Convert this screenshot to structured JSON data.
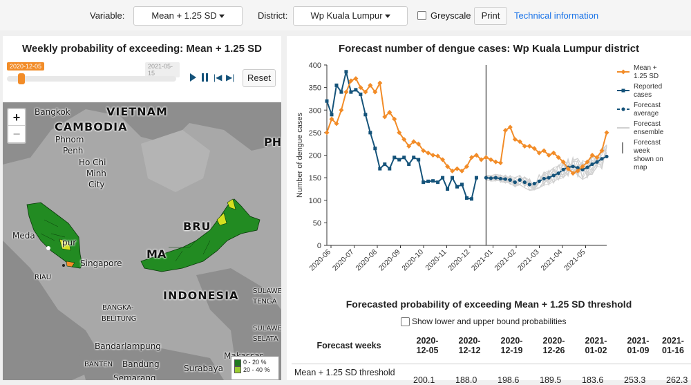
{
  "controls": {
    "variable_label": "Variable:",
    "variable_value": "Mean + 1.25 SD",
    "district_label": "District:",
    "district_value": "Wp Kuala Lumpur",
    "greyscale_label": "Greyscale",
    "print_label": "Print",
    "technical_link": "Technical information"
  },
  "map_panel": {
    "title": "Weekly probability of exceeding: Mean + 1.25 SD",
    "timeline_start": "2020-12-05",
    "timeline_end": "2021-05-15",
    "timeline_progress": 0,
    "reset_label": "Reset",
    "zoom_in": "+",
    "zoom_out": "−",
    "place_labels": [
      "Bangkok",
      "VIETNAM",
      "CAMBODIA",
      "Phnom",
      "Penh",
      "Ho Chi",
      "Minh",
      "City",
      "PH",
      "BRU",
      "Meda",
      "pur",
      "Singapore",
      "MA",
      "RIAU",
      "INDONESIA",
      "SULAWE",
      "TENGA",
      "BANGKA-",
      "BELITUNG",
      "SULAWE",
      "SELATA",
      "Bandarlampung",
      "BANTEN",
      "Bandung",
      "Surabaya",
      "Makassar",
      "Semarang"
    ],
    "legend": [
      {
        "label": "0 - 20 %",
        "color": "#1f7a1f"
      },
      {
        "label": "20 - 40 %",
        "color": "#9acd32"
      }
    ]
  },
  "chart_panel": {
    "title": "Forecast number of dengue cases: Wp Kuala Lumpur district"
  },
  "chart_data": {
    "type": "line",
    "title": "Forecast number of dengue cases: Wp Kuala Lumpur district",
    "ylabel": "Number of dengue cases",
    "ylim": [
      0,
      400
    ],
    "yticks": [
      "0",
      "50",
      "100",
      "150",
      "200",
      "250",
      "300",
      "350",
      "400"
    ],
    "xticks": [
      "2020-06",
      "2020-07",
      "2020-08",
      "2020-09",
      "2020-10",
      "2020-11",
      "2020-12",
      "2021-01",
      "2021-02",
      "2021-03",
      "2021-04",
      "2021-05"
    ],
    "forecast_week_marker": "2020-12-05",
    "series": [
      {
        "name": "Mean + 1.25 SD",
        "color": "#f28c28",
        "values": [
          250,
          280,
          270,
          300,
          340,
          365,
          370,
          350,
          340,
          355,
          340,
          360,
          285,
          295,
          280,
          250,
          235,
          220,
          230,
          225,
          210,
          205,
          200,
          198,
          190,
          175,
          165,
          170,
          165,
          175,
          195,
          200,
          190,
          195,
          190,
          185,
          183,
          255,
          262,
          235,
          230,
          220,
          220,
          215,
          205,
          210,
          200,
          205,
          195,
          185,
          170,
          160,
          165,
          175,
          185,
          200,
          195,
          210,
          250
        ]
      },
      {
        "name": "Reported cases",
        "color": "#15537a",
        "values": [
          320,
          290,
          355,
          340,
          385,
          340,
          345,
          335,
          290,
          250,
          215,
          170,
          180,
          170,
          195,
          190,
          195,
          180,
          195,
          190,
          140,
          142,
          143,
          140,
          150,
          125,
          150,
          130,
          135,
          105,
          103,
          150
        ]
      },
      {
        "name": "Forecast average",
        "color": "#15537a",
        "values": [
          150,
          149,
          150,
          148,
          147,
          145,
          140,
          145,
          140,
          135,
          137,
          142,
          148,
          150,
          155,
          160,
          168,
          173,
          175,
          172,
          168,
          173,
          180,
          185,
          192,
          197
        ]
      },
      {
        "name": "Forecast ensemble",
        "color": "#d0d0d0",
        "values": []
      }
    ],
    "legend_extra": "Forecast week shown on map"
  },
  "table": {
    "title": "Forecasted probability of exceeding Mean + 1.25 SD threshold",
    "checkbox_label": "Show lower and upper bound probabilities",
    "header_label": "Forecast weeks",
    "weeks": [
      "2020-12-05",
      "2020-12-12",
      "2020-12-19",
      "2020-12-26",
      "2021-01-02",
      "2021-01-09",
      "2021-01-16"
    ],
    "row_label": "Mean + 1.25 SD threshold",
    "row_values": [
      "200.1",
      "188.0",
      "198.6",
      "189.5",
      "183.6",
      "253.3",
      "262.3"
    ]
  }
}
